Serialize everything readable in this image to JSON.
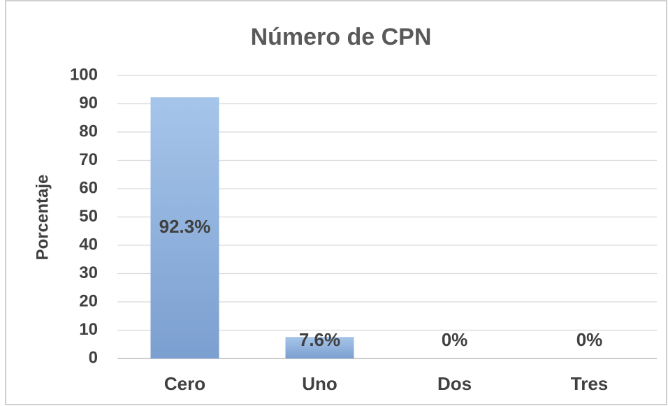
{
  "chart_data": {
    "type": "bar",
    "title": "Número de CPN",
    "y_label": "Porcentaje",
    "categories": [
      "Cero",
      "Uno",
      "Dos",
      "Tres"
    ],
    "values": [
      92.3,
      7.6,
      0,
      0
    ],
    "value_labels": [
      "92.3%",
      "7.6%",
      "0%",
      "0%"
    ],
    "color": "#8fb2df",
    "ylim": [
      0,
      100
    ],
    "yticks": [
      0,
      10,
      20,
      30,
      40,
      50,
      60,
      70,
      80,
      90,
      100
    ],
    "grid": true
  }
}
